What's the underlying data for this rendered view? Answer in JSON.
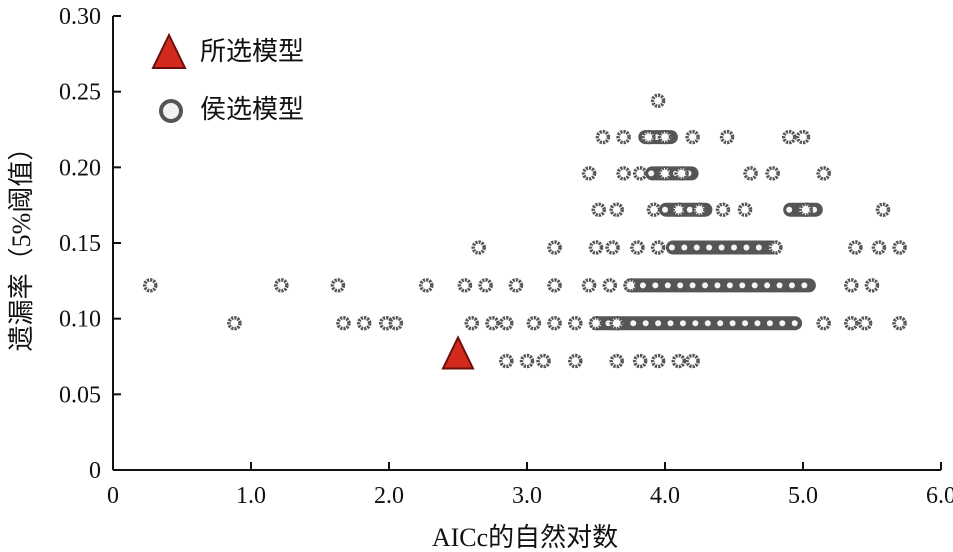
{
  "chart_data": {
    "type": "scatter",
    "title": "",
    "xlabel": "AICc的自然对数",
    "ylabel": "遗漏率（5%阈值）",
    "xlim": [
      0,
      6.0
    ],
    "ylim": [
      0,
      0.3
    ],
    "xticks": [
      "0",
      "1.0",
      "2.0",
      "3.0",
      "4.0",
      "5.0",
      "6.0"
    ],
    "yticks": [
      "0",
      "0.05",
      "0.10",
      "0.15",
      "0.20",
      "0.25",
      "0.30"
    ],
    "grid": false,
    "legend_position": "top-left",
    "colors": {
      "selected": "#d42a1e",
      "candidate": "#555555"
    },
    "series": [
      {
        "name": "所选模型",
        "marker": "triangle",
        "points": [
          [
            2.5,
            0.075
          ]
        ]
      },
      {
        "name": "侯选模型",
        "marker": "ring",
        "points": [
          [
            0.27,
            0.122
          ],
          [
            1.22,
            0.122
          ],
          [
            1.63,
            0.122
          ],
          [
            2.27,
            0.122
          ],
          [
            2.55,
            0.122
          ],
          [
            2.7,
            0.122
          ],
          [
            2.92,
            0.122
          ],
          [
            3.2,
            0.122
          ],
          [
            3.45,
            0.122
          ],
          [
            3.6,
            0.122
          ],
          [
            3.75,
            0.122
          ],
          [
            5.35,
            0.122
          ],
          [
            5.5,
            0.122
          ],
          [
            0.88,
            0.097
          ],
          [
            1.67,
            0.097
          ],
          [
            1.82,
            0.097
          ],
          [
            1.98,
            0.097
          ],
          [
            2.05,
            0.097
          ],
          [
            2.6,
            0.097
          ],
          [
            2.75,
            0.097
          ],
          [
            2.85,
            0.097
          ],
          [
            3.05,
            0.097
          ],
          [
            3.2,
            0.097
          ],
          [
            3.35,
            0.097
          ],
          [
            3.5,
            0.097
          ],
          [
            3.65,
            0.097
          ],
          [
            5.15,
            0.097
          ],
          [
            5.35,
            0.097
          ],
          [
            5.45,
            0.097
          ],
          [
            5.7,
            0.097
          ],
          [
            2.65,
            0.147
          ],
          [
            3.2,
            0.147
          ],
          [
            3.5,
            0.147
          ],
          [
            3.62,
            0.147
          ],
          [
            3.8,
            0.147
          ],
          [
            3.95,
            0.147
          ],
          [
            4.8,
            0.147
          ],
          [
            5.38,
            0.147
          ],
          [
            5.55,
            0.147
          ],
          [
            5.7,
            0.147
          ],
          [
            2.85,
            0.072
          ],
          [
            3.0,
            0.072
          ],
          [
            3.12,
            0.072
          ],
          [
            3.35,
            0.072
          ],
          [
            3.65,
            0.072
          ],
          [
            3.82,
            0.072
          ],
          [
            3.95,
            0.072
          ],
          [
            4.1,
            0.072
          ],
          [
            4.2,
            0.072
          ],
          [
            3.52,
            0.172
          ],
          [
            3.65,
            0.172
          ],
          [
            3.92,
            0.172
          ],
          [
            4.1,
            0.172
          ],
          [
            4.25,
            0.172
          ],
          [
            4.42,
            0.172
          ],
          [
            4.58,
            0.172
          ],
          [
            5.02,
            0.172
          ],
          [
            5.58,
            0.172
          ],
          [
            3.45,
            0.196
          ],
          [
            3.7,
            0.196
          ],
          [
            3.82,
            0.196
          ],
          [
            4.0,
            0.196
          ],
          [
            4.12,
            0.196
          ],
          [
            4.62,
            0.196
          ],
          [
            4.78,
            0.196
          ],
          [
            5.15,
            0.196
          ],
          [
            3.55,
            0.22
          ],
          [
            3.7,
            0.22
          ],
          [
            3.88,
            0.22
          ],
          [
            4.0,
            0.22
          ],
          [
            4.2,
            0.22
          ],
          [
            4.45,
            0.22
          ],
          [
            4.9,
            0.22
          ],
          [
            5.0,
            0.22
          ],
          [
            3.95,
            0.244
          ]
        ]
      }
    ],
    "dense_clusters": [
      {
        "y": 0.122,
        "x_range": [
          3.75,
          5.05
        ]
      },
      {
        "y": 0.097,
        "x_range": [
          3.5,
          4.95
        ]
      },
      {
        "y": 0.147,
        "x_range": [
          4.05,
          4.78
        ]
      },
      {
        "y": 0.172,
        "x_range": [
          4.0,
          4.3
        ]
      },
      {
        "y": 0.172,
        "x_range": [
          4.9,
          5.1
        ]
      },
      {
        "y": 0.196,
        "x_range": [
          3.9,
          4.2
        ]
      },
      {
        "y": 0.22,
        "x_range": [
          3.85,
          4.05
        ]
      }
    ]
  }
}
